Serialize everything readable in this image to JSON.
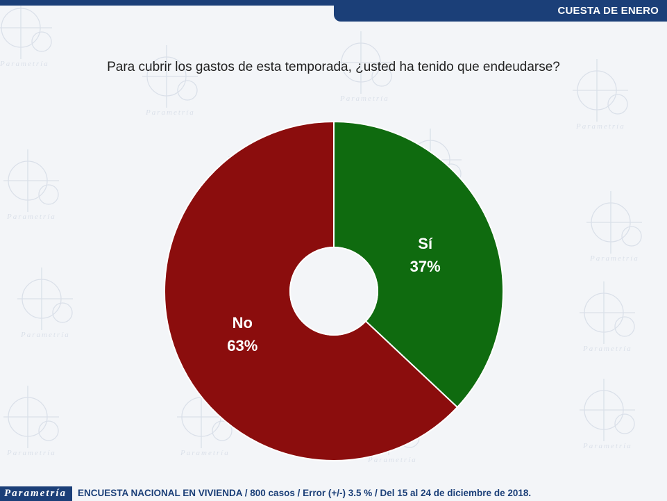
{
  "header": {
    "section_title": "CUESTA DE ENERO"
  },
  "watermark_word": "Parametría",
  "chart_data": {
    "type": "pie",
    "variant": "donut",
    "title": "Para cubrir los gastos de esta temporada, ¿usted ha tenido que endeudarse?",
    "slices": [
      {
        "label": "Sí",
        "value": 37,
        "display": "37%",
        "color": "#0f6b0f"
      },
      {
        "label": "No",
        "value": 63,
        "display": "63%",
        "color": "#8b0d0d"
      }
    ]
  },
  "footer": {
    "logo_text": "Parametría",
    "source_note": "ENCUESTA NACIONAL EN VIVIENDA / 800 casos / Error (+/-) 3.5 % / Del 15 al 24 de diciembre de 2018."
  },
  "colors": {
    "brand": "#1b3f78",
    "background": "#f3f5f8"
  }
}
